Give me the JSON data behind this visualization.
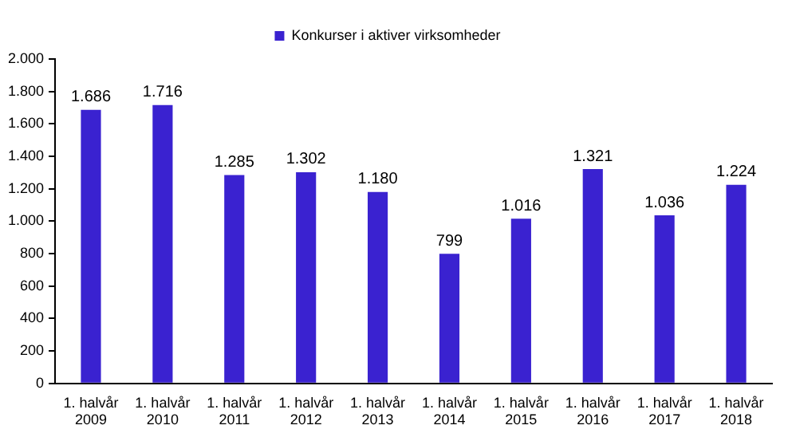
{
  "chart_data": {
    "type": "bar",
    "categories": [
      "1. halvår\n2009",
      "1. halvår\n2010",
      "1. halvår\n2011",
      "1. halvår\n2012",
      "1. halvår\n2013",
      "1. halvår\n2014",
      "1. halvår\n2015",
      "1. halvår\n2016",
      "1. halvår\n2017",
      "1. halvår\n2018"
    ],
    "series": [
      {
        "name": "Konkurser i aktiver virksomheder",
        "color": "#3a22d0",
        "values": [
          1686,
          1716,
          1285,
          1302,
          1180,
          799,
          1016,
          1321,
          1036,
          1224
        ],
        "value_labels": [
          "1.686",
          "1.716",
          "1.285",
          "1.302",
          "1.180",
          "799",
          "1.016",
          "1.321",
          "1.036",
          "1.224"
        ]
      }
    ],
    "ylim": [
      0,
      2000
    ],
    "yticks": [
      {
        "value": 0,
        "label": "0"
      },
      {
        "value": 200,
        "label": "200"
      },
      {
        "value": 400,
        "label": "400"
      },
      {
        "value": 600,
        "label": "600"
      },
      {
        "value": 800,
        "label": "800"
      },
      {
        "value": 1000,
        "label": "1.000"
      },
      {
        "value": 1200,
        "label": "1.200"
      },
      {
        "value": 1400,
        "label": "1.400"
      },
      {
        "value": 1600,
        "label": "1.600"
      },
      {
        "value": 1800,
        "label": "1.800"
      },
      {
        "value": 2000,
        "label": "2.000"
      }
    ],
    "legend": "top",
    "grid": false
  }
}
